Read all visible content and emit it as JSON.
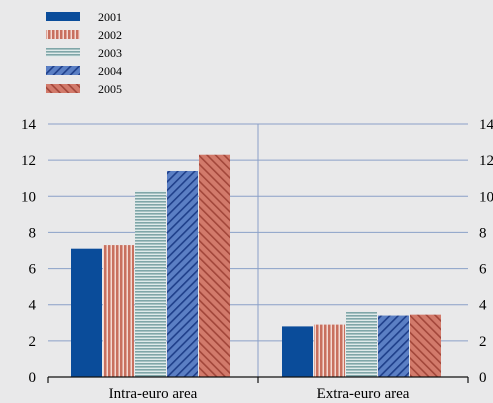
{
  "chart_data": {
    "type": "bar",
    "categories": [
      "Intra-euro area",
      "Extra-euro area"
    ],
    "series": [
      {
        "name": "2001",
        "values": [
          7.1,
          2.8
        ],
        "color": "#0a4c9a",
        "pattern": "solid"
      },
      {
        "name": "2002",
        "values": [
          7.3,
          2.9
        ],
        "color": "#c8705f",
        "pattern": "vertical-stripes"
      },
      {
        "name": "2003",
        "values": [
          10.3,
          3.6
        ],
        "color": "#7fa6a8",
        "pattern": "horizontal-stripes"
      },
      {
        "name": "2004",
        "values": [
          11.4,
          3.4
        ],
        "color": "#5b7fc4",
        "pattern": "diagonal-stripes"
      },
      {
        "name": "2005",
        "values": [
          12.3,
          3.45
        ],
        "color": "#d27a6b",
        "pattern": "diagonal-stripes"
      }
    ],
    "ylim": [
      0,
      14
    ],
    "yticks": [
      "0",
      "2",
      "4",
      "6",
      "8",
      "10",
      "12",
      "14"
    ],
    "right_axis_ticks": [
      "0",
      "2",
      "4",
      "6",
      "8",
      "10",
      "12",
      "14"
    ],
    "grid": true,
    "legend_position": "top-left"
  }
}
